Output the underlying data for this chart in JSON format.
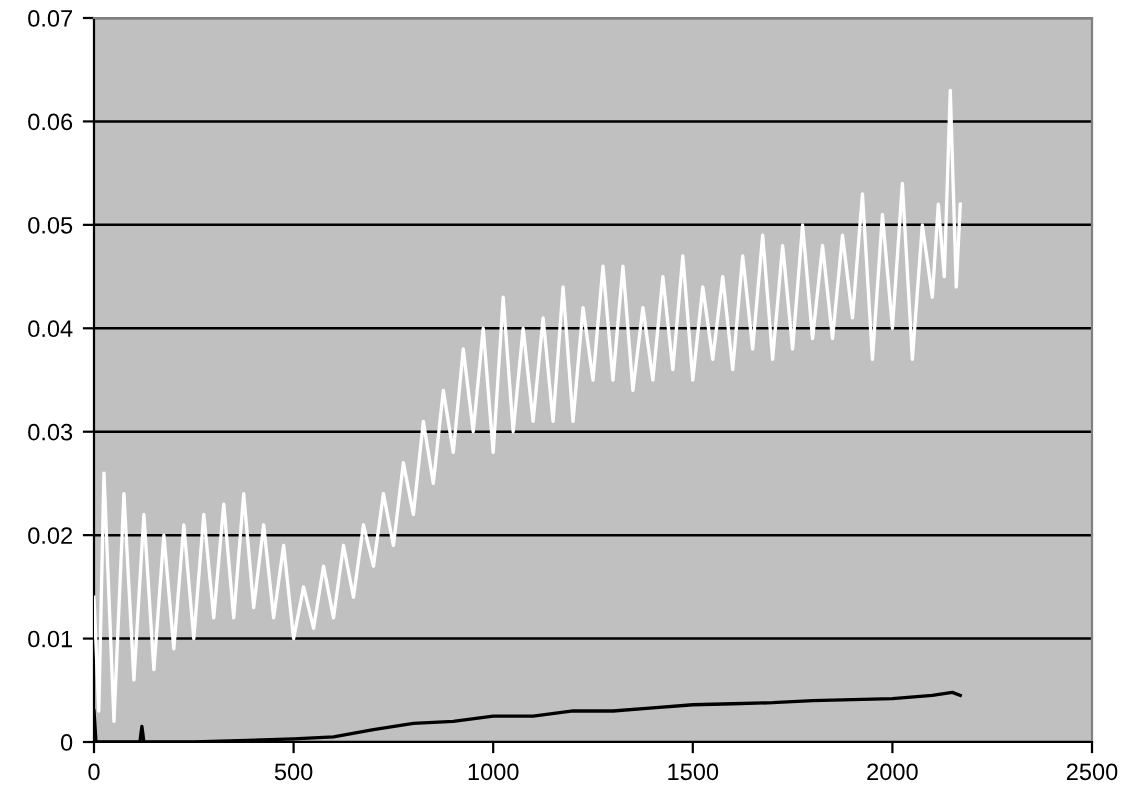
{
  "chart_data": {
    "type": "line",
    "xlim": [
      0,
      2500
    ],
    "ylim": [
      0,
      0.07
    ],
    "xticks": [
      0,
      500,
      1000,
      1500,
      2000,
      2500
    ],
    "yticks": [
      0,
      0.01,
      0.02,
      0.03,
      0.04,
      0.05,
      0.06,
      0.07
    ],
    "grid": "y",
    "marker": "none",
    "line_style": "solid",
    "legend": false,
    "series": [
      {
        "color": "#ffffff",
        "x": [
          0,
          12,
          25,
          50,
          75,
          100,
          125,
          150,
          175,
          200,
          225,
          250,
          275,
          300,
          325,
          350,
          375,
          400,
          425,
          450,
          475,
          500,
          525,
          550,
          575,
          600,
          625,
          650,
          675,
          700,
          725,
          750,
          775,
          800,
          825,
          850,
          875,
          900,
          925,
          950,
          975,
          1000,
          1025,
          1050,
          1075,
          1100,
          1125,
          1150,
          1175,
          1200,
          1225,
          1250,
          1275,
          1300,
          1325,
          1350,
          1375,
          1400,
          1425,
          1450,
          1475,
          1500,
          1525,
          1550,
          1575,
          1600,
          1625,
          1650,
          1675,
          1700,
          1725,
          1750,
          1775,
          1800,
          1825,
          1850,
          1875,
          1900,
          1925,
          1950,
          1975,
          2000,
          2025,
          2050,
          2075,
          2100,
          2115,
          2130,
          2145,
          2160,
          2170
        ],
        "values": [
          0.014,
          0.003,
          0.026,
          0.002,
          0.024,
          0.006,
          0.022,
          0.007,
          0.02,
          0.009,
          0.021,
          0.01,
          0.022,
          0.012,
          0.023,
          0.012,
          0.024,
          0.013,
          0.021,
          0.012,
          0.019,
          0.01,
          0.015,
          0.011,
          0.017,
          0.012,
          0.019,
          0.014,
          0.021,
          0.017,
          0.024,
          0.019,
          0.027,
          0.022,
          0.031,
          0.025,
          0.034,
          0.028,
          0.038,
          0.03,
          0.04,
          0.028,
          0.043,
          0.03,
          0.04,
          0.031,
          0.041,
          0.031,
          0.044,
          0.031,
          0.042,
          0.035,
          0.046,
          0.035,
          0.046,
          0.034,
          0.042,
          0.035,
          0.045,
          0.036,
          0.047,
          0.035,
          0.044,
          0.037,
          0.045,
          0.036,
          0.047,
          0.038,
          0.049,
          0.037,
          0.048,
          0.038,
          0.05,
          0.039,
          0.048,
          0.039,
          0.049,
          0.041,
          0.053,
          0.037,
          0.051,
          0.04,
          0.054,
          0.037,
          0.05,
          0.043,
          0.052,
          0.045,
          0.063,
          0.044,
          0.052
        ]
      },
      {
        "color": "#000000",
        "x": [
          0,
          5,
          10,
          100,
          115,
          120,
          125,
          250,
          500,
          600,
          700,
          800,
          900,
          1000,
          1100,
          1200,
          1300,
          1400,
          1500,
          1600,
          1700,
          1800,
          1900,
          2000,
          2100,
          2150,
          2170
        ],
        "values": [
          0.003,
          0.0,
          0.0,
          0.0,
          0.0,
          0.0015,
          0.0,
          0.0,
          0.0003,
          0.0005,
          0.0012,
          0.0018,
          0.002,
          0.0025,
          0.0025,
          0.003,
          0.003,
          0.0033,
          0.0036,
          0.0037,
          0.0038,
          0.004,
          0.0041,
          0.0042,
          0.0045,
          0.0048,
          0.0045
        ]
      }
    ]
  }
}
